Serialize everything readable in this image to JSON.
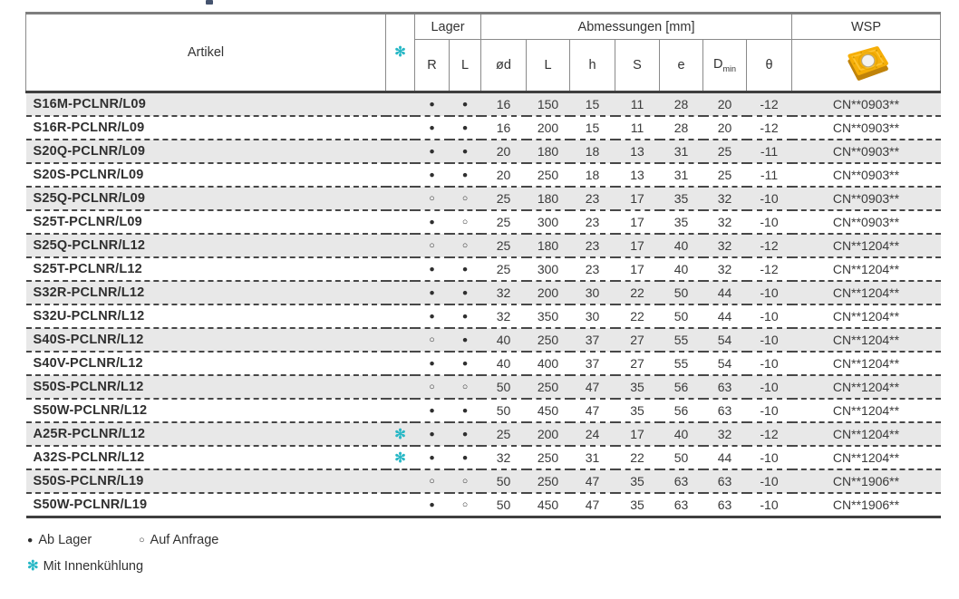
{
  "header": {
    "artikel": "Artikel",
    "coolant_symbol": "✻",
    "lager": "Lager",
    "r": "R",
    "l": "L",
    "abmessungen": "Abmessungen [mm]",
    "wsp": "WSP",
    "dims": {
      "od": "ød",
      "L": "L",
      "h": "h",
      "S": "S",
      "e": "e",
      "dmin_base": "D",
      "dmin_sub": "min",
      "theta": "θ"
    }
  },
  "rows": [
    {
      "artikel": "S16M-PCLNR/L09",
      "coolant": "",
      "r": "●",
      "l": "●",
      "dims": [
        "16",
        "150",
        "15",
        "11",
        "28",
        "20",
        "-12"
      ],
      "wsp": "CN**0903**"
    },
    {
      "artikel": "S16R-PCLNR/L09",
      "coolant": "",
      "r": "●",
      "l": "●",
      "dims": [
        "16",
        "200",
        "15",
        "11",
        "28",
        "20",
        "-12"
      ],
      "wsp": "CN**0903**"
    },
    {
      "artikel": "S20Q-PCLNR/L09",
      "coolant": "",
      "r": "●",
      "l": "●",
      "dims": [
        "20",
        "180",
        "18",
        "13",
        "31",
        "25",
        "-11"
      ],
      "wsp": "CN**0903**"
    },
    {
      "artikel": "S20S-PCLNR/L09",
      "coolant": "",
      "r": "●",
      "l": "●",
      "dims": [
        "20",
        "250",
        "18",
        "13",
        "31",
        "25",
        "-11"
      ],
      "wsp": "CN**0903**"
    },
    {
      "artikel": "S25Q-PCLNR/L09",
      "coolant": "",
      "r": "○",
      "l": "○",
      "dims": [
        "25",
        "180",
        "23",
        "17",
        "35",
        "32",
        "-10"
      ],
      "wsp": "CN**0903**"
    },
    {
      "artikel": "S25T-PCLNR/L09",
      "coolant": "",
      "r": "●",
      "l": "○",
      "dims": [
        "25",
        "300",
        "23",
        "17",
        "35",
        "32",
        "-10"
      ],
      "wsp": "CN**0903**"
    },
    {
      "artikel": "S25Q-PCLNR/L12",
      "coolant": "",
      "r": "○",
      "l": "○",
      "dims": [
        "25",
        "180",
        "23",
        "17",
        "40",
        "32",
        "-12"
      ],
      "wsp": "CN**1204**"
    },
    {
      "artikel": "S25T-PCLNR/L12",
      "coolant": "",
      "r": "●",
      "l": "●",
      "dims": [
        "25",
        "300",
        "23",
        "17",
        "40",
        "32",
        "-12"
      ],
      "wsp": "CN**1204**"
    },
    {
      "artikel": "S32R-PCLNR/L12",
      "coolant": "",
      "r": "●",
      "l": "●",
      "dims": [
        "32",
        "200",
        "30",
        "22",
        "50",
        "44",
        "-10"
      ],
      "wsp": "CN**1204**"
    },
    {
      "artikel": "S32U-PCLNR/L12",
      "coolant": "",
      "r": "●",
      "l": "●",
      "dims": [
        "32",
        "350",
        "30",
        "22",
        "50",
        "44",
        "-10"
      ],
      "wsp": "CN**1204**"
    },
    {
      "artikel": "S40S-PCLNR/L12",
      "coolant": "",
      "r": "○",
      "l": "●",
      "dims": [
        "40",
        "250",
        "37",
        "27",
        "55",
        "54",
        "-10"
      ],
      "wsp": "CN**1204**"
    },
    {
      "artikel": "S40V-PCLNR/L12",
      "coolant": "",
      "r": "●",
      "l": "●",
      "dims": [
        "40",
        "400",
        "37",
        "27",
        "55",
        "54",
        "-10"
      ],
      "wsp": "CN**1204**"
    },
    {
      "artikel": "S50S-PCLNR/L12",
      "coolant": "",
      "r": "○",
      "l": "○",
      "dims": [
        "50",
        "250",
        "47",
        "35",
        "56",
        "63",
        "-10"
      ],
      "wsp": "CN**1204**"
    },
    {
      "artikel": "S50W-PCLNR/L12",
      "coolant": "",
      "r": "●",
      "l": "●",
      "dims": [
        "50",
        "450",
        "47",
        "35",
        "56",
        "63",
        "-10"
      ],
      "wsp": "CN**1204**"
    },
    {
      "artikel": "A25R-PCLNR/L12",
      "coolant": "✻",
      "r": "●",
      "l": "●",
      "dims": [
        "25",
        "200",
        "24",
        "17",
        "40",
        "32",
        "-12"
      ],
      "wsp": "CN**1204**"
    },
    {
      "artikel": "A32S-PCLNR/L12",
      "coolant": "✻",
      "r": "●",
      "l": "●",
      "dims": [
        "32",
        "250",
        "31",
        "22",
        "50",
        "44",
        "-10"
      ],
      "wsp": "CN**1204**"
    },
    {
      "artikel": "S50S-PCLNR/L19",
      "coolant": "",
      "r": "○",
      "l": "○",
      "dims": [
        "50",
        "250",
        "47",
        "35",
        "63",
        "63",
        "-10"
      ],
      "wsp": "CN**1906**"
    },
    {
      "artikel": "S50W-PCLNR/L19",
      "coolant": "",
      "r": "●",
      "l": "○",
      "dims": [
        "50",
        "450",
        "47",
        "35",
        "63",
        "63",
        "-10"
      ],
      "wsp": "CN**1906**"
    }
  ],
  "legend": {
    "filled_dot": "●",
    "ab_lager": "Ab Lager",
    "open_dot": "○",
    "auf_anfrage": "Auf Anfrage",
    "coolant_symbol": "✻",
    "mit_innenkuehlung": "Mit Innenkühlung"
  },
  "colors": {
    "accent_teal": "#29b8c6",
    "row_alt": "#e8e8e8",
    "insert_gold": "#f6af08",
    "insert_gold_dark": "#c0830a",
    "border_dark": "#3f3f3f",
    "border_gray": "#7e7e7e"
  }
}
